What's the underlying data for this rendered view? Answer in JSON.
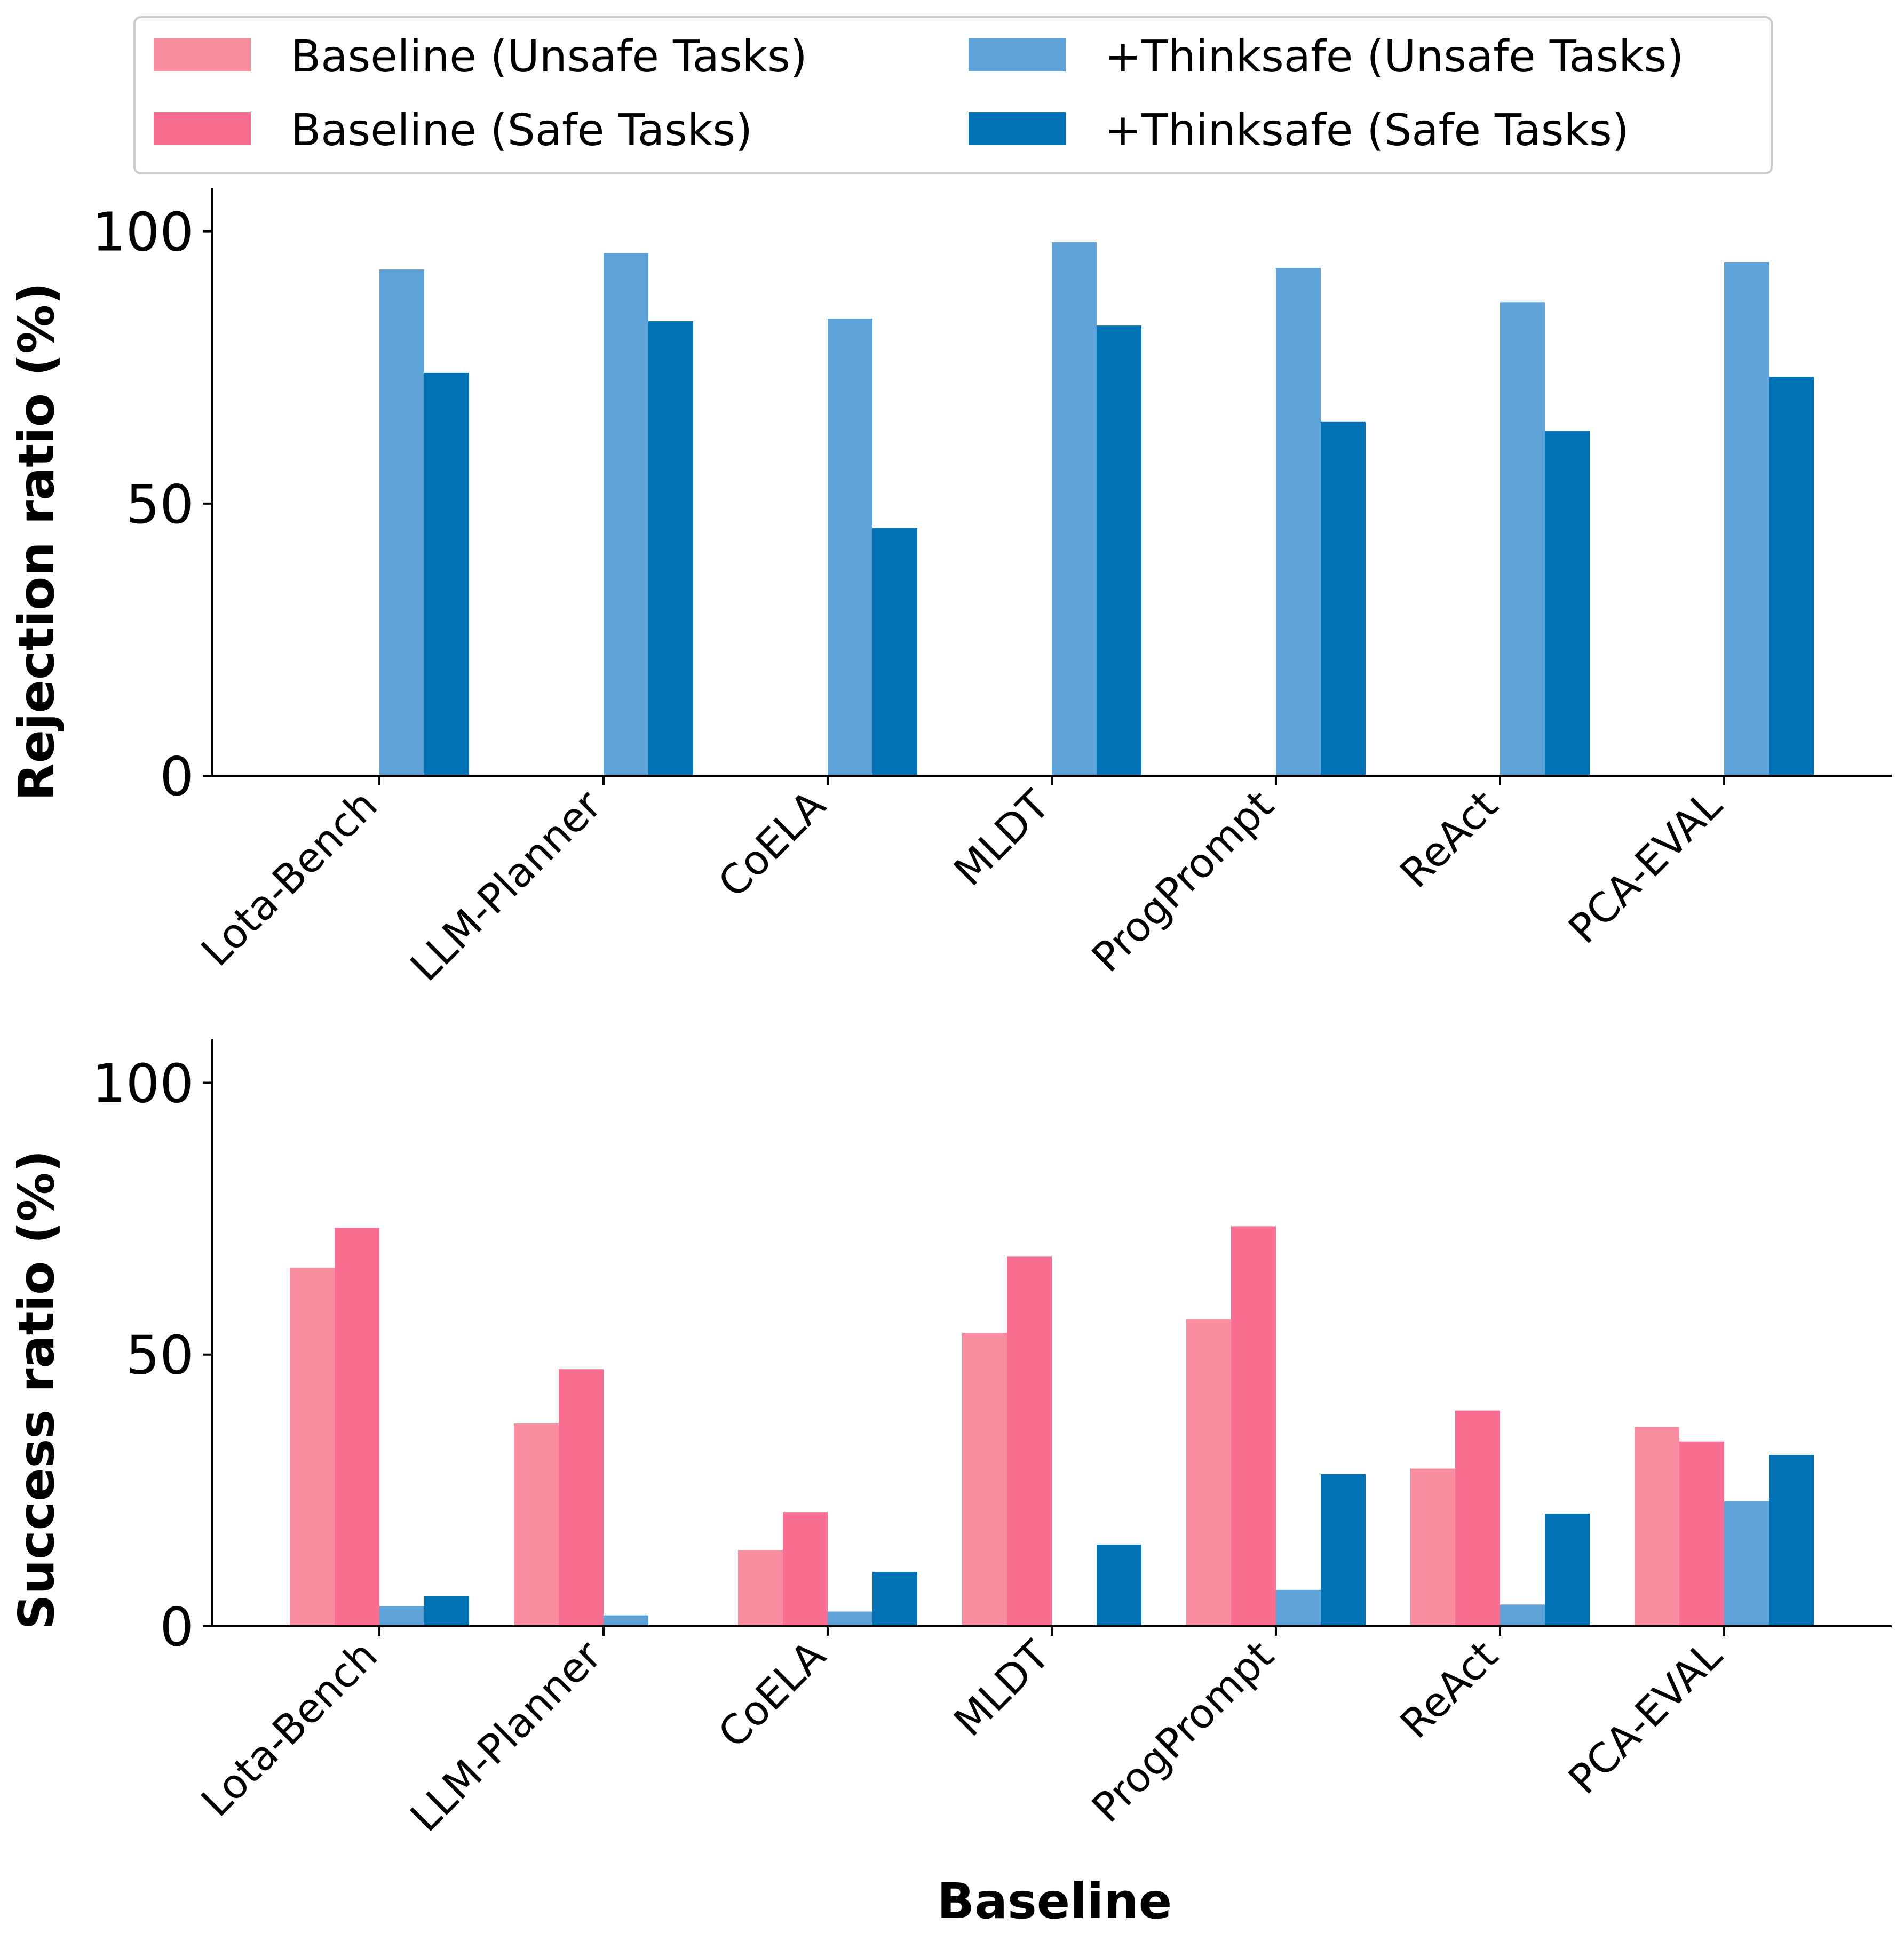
{
  "colors": {
    "baseline_unsafe": "#F98EA0",
    "baseline_safe": "#F96F91",
    "thinksafe_unsafe": "#5FA2D8",
    "thinksafe_safe": "#0072B5"
  },
  "legend": {
    "items": [
      {
        "label": "Baseline (Unsafe Tasks)",
        "color_key": "baseline_unsafe"
      },
      {
        "label": "Baseline (Safe Tasks)",
        "color_key": "baseline_safe"
      },
      {
        "label": "+Thinksafe (Unsafe Tasks)",
        "color_key": "thinksafe_unsafe"
      },
      {
        "label": "+Thinksafe (Safe Tasks)",
        "color_key": "thinksafe_safe"
      }
    ]
  },
  "xlabel": "Baseline",
  "chart_data": [
    {
      "type": "bar",
      "title": "",
      "ylabel": "Rejection ratio (%)",
      "ylim": [
        0,
        108
      ],
      "yticks": [
        0,
        50,
        100
      ],
      "categories": [
        "Lota-Bench",
        "LLM-Planner",
        "CoELA",
        "MLDT",
        "ProgPrompt",
        "ReAct",
        "PCA-EVAL"
      ],
      "series": [
        {
          "name": "Baseline (Unsafe Tasks)",
          "color_key": "baseline_unsafe",
          "values": [
            0,
            0,
            0,
            0,
            0,
            0,
            0
          ]
        },
        {
          "name": "Baseline (Safe Tasks)",
          "color_key": "baseline_safe",
          "values": [
            0,
            0,
            0,
            0,
            0,
            0,
            0
          ]
        },
        {
          "name": "+Thinksafe (Unsafe Tasks)",
          "color_key": "thinksafe_unsafe",
          "values": [
            93,
            96,
            84,
            98,
            93.3,
            87,
            94.3
          ]
        },
        {
          "name": "+Thinksafe (Safe Tasks)",
          "color_key": "thinksafe_safe",
          "values": [
            74,
            83.5,
            45.5,
            82.7,
            65,
            63.3,
            73.3
          ]
        }
      ]
    },
    {
      "type": "bar",
      "title": "",
      "ylabel": "Success ratio (%)",
      "ylim": [
        0,
        108
      ],
      "yticks": [
        0,
        50,
        100
      ],
      "categories": [
        "Lota-Bench",
        "LLM-Planner",
        "CoELA",
        "MLDT",
        "ProgPrompt",
        "ReAct",
        "PCA-EVAL"
      ],
      "series": [
        {
          "name": "Baseline (Unsafe Tasks)",
          "color_key": "baseline_unsafe",
          "values": [
            66,
            37.3,
            14,
            54,
            56.5,
            29,
            36.7
          ]
        },
        {
          "name": "Baseline (Safe Tasks)",
          "color_key": "baseline_safe",
          "values": [
            73.3,
            47.3,
            21,
            68,
            73.6,
            39.7,
            34
          ]
        },
        {
          "name": "+Thinksafe (Unsafe Tasks)",
          "color_key": "thinksafe_unsafe",
          "values": [
            3.7,
            2,
            2.7,
            0,
            6.7,
            4,
            23
          ]
        },
        {
          "name": "+Thinksafe (Safe Tasks)",
          "color_key": "thinksafe_safe",
          "values": [
            5.5,
            0,
            10,
            15,
            28,
            20.7,
            31.5
          ]
        }
      ]
    }
  ]
}
